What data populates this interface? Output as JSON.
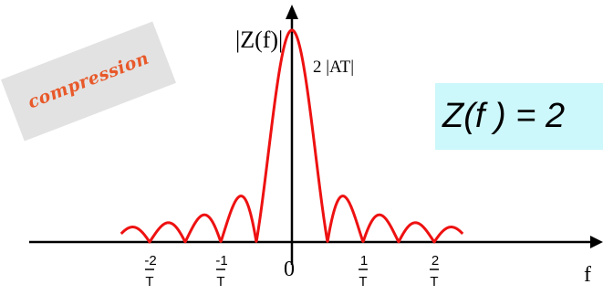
{
  "colors": {
    "curve": "#ee1111",
    "axes": "#000000",
    "tag_bg": "#e2e2e2",
    "tag_text": "#e8592a",
    "formula_bg": "#ccf7fb",
    "text": "#000000"
  },
  "labels": {
    "y_axis": "|Z(f)|",
    "x_axis": "f",
    "peak": "2 |AT|",
    "compression_tag": "compression",
    "formula": "Z(f ) = 2"
  },
  "ticks": [
    {
      "num": "-2",
      "den": "T",
      "x": -2
    },
    {
      "num": "-1",
      "den": "T",
      "x": -1
    },
    {
      "num": "0",
      "den": "",
      "x": 0
    },
    {
      "num": "1",
      "den": "T",
      "x": 1
    },
    {
      "num": "2",
      "den": "T",
      "x": 2
    }
  ],
  "curve": {
    "shape": "abs-sinc",
    "zeros_per_unit": 2,
    "x_range": [
      -2.4,
      2.4
    ]
  }
}
